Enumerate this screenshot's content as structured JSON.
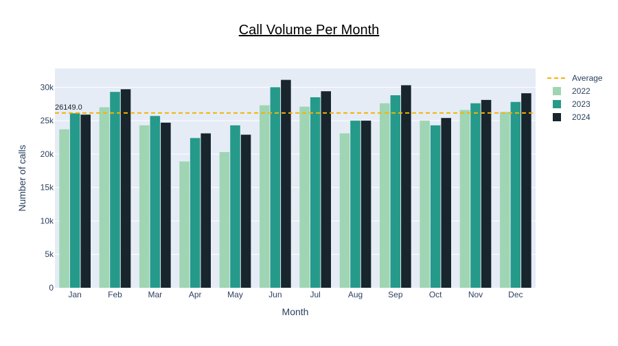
{
  "chart_data": {
    "type": "bar",
    "title": "Call Volume Per Month",
    "xlabel": "Month",
    "ylabel": "Number of calls",
    "categories": [
      "Jan",
      "Feb",
      "Mar",
      "Apr",
      "May",
      "Jun",
      "Jul",
      "Aug",
      "Sep",
      "Oct",
      "Nov",
      "Dec"
    ],
    "series": [
      {
        "name": "2022",
        "color": "#9fd5b3",
        "values": [
          23700,
          27000,
          24300,
          18900,
          20300,
          27300,
          27100,
          23100,
          27600,
          25000,
          26600,
          26300
        ]
      },
      {
        "name": "2023",
        "color": "#269a8a",
        "values": [
          26100,
          29300,
          25700,
          22400,
          24300,
          30000,
          28500,
          25000,
          28800,
          24300,
          27600,
          27800
        ]
      },
      {
        "name": "2024",
        "color": "#18252d",
        "values": [
          25900,
          29700,
          24700,
          23100,
          22900,
          31100,
          29400,
          25000,
          30300,
          25400,
          28100,
          29100
        ]
      }
    ],
    "ylim": [
      0,
      32800
    ],
    "y_ticks": [
      0,
      5000,
      10000,
      15000,
      20000,
      25000,
      30000
    ],
    "y_tick_labels": [
      "0",
      "5k",
      "10k",
      "15k",
      "20k",
      "25k",
      "30k"
    ],
    "average": {
      "name": "Average",
      "value": 26149.0,
      "label": "26149.0",
      "color": "#f4b400",
      "style": "dashed"
    },
    "legend": {
      "position": "top-right",
      "entries": [
        "Average",
        "2022",
        "2023",
        "2024"
      ]
    },
    "grid": true,
    "plot_background": "#e5ecf6"
  }
}
